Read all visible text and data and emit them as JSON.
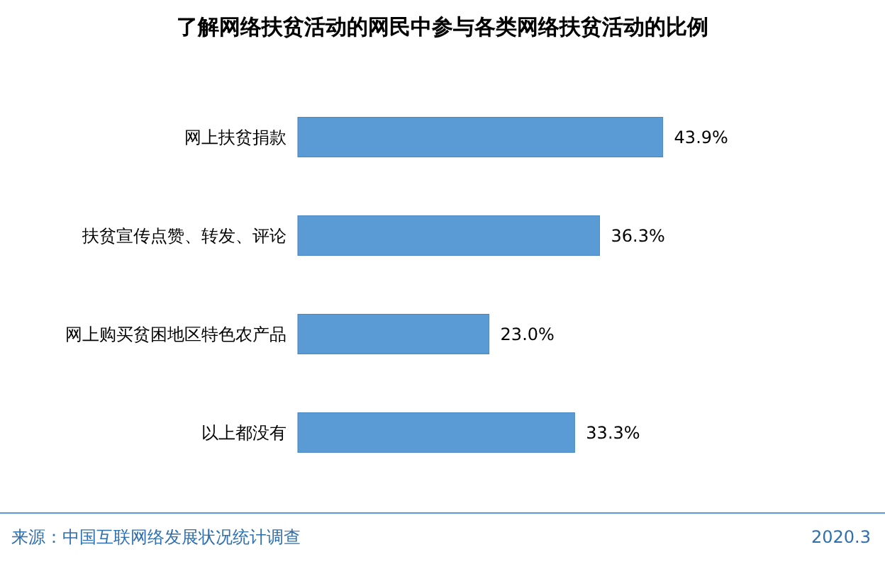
{
  "chart_data": {
    "type": "bar",
    "orientation": "horizontal",
    "title": "了解网络扶贫活动的网民中参与各类网络扶贫活动的比例",
    "categories": [
      "网上扶贫捐款",
      "扶贫宣传点赞、转发、评论",
      "网上购买贫困地区特色农产品",
      "以上都没有"
    ],
    "values": [
      43.9,
      36.3,
      23.0,
      33.3
    ],
    "value_labels": [
      "43.9%",
      "36.3%",
      "23.0%",
      "33.3%"
    ],
    "color": "#5b9bd5",
    "annotations": [
      "来源：中国互联网络发展状况统计调查",
      "2020.3"
    ]
  }
}
